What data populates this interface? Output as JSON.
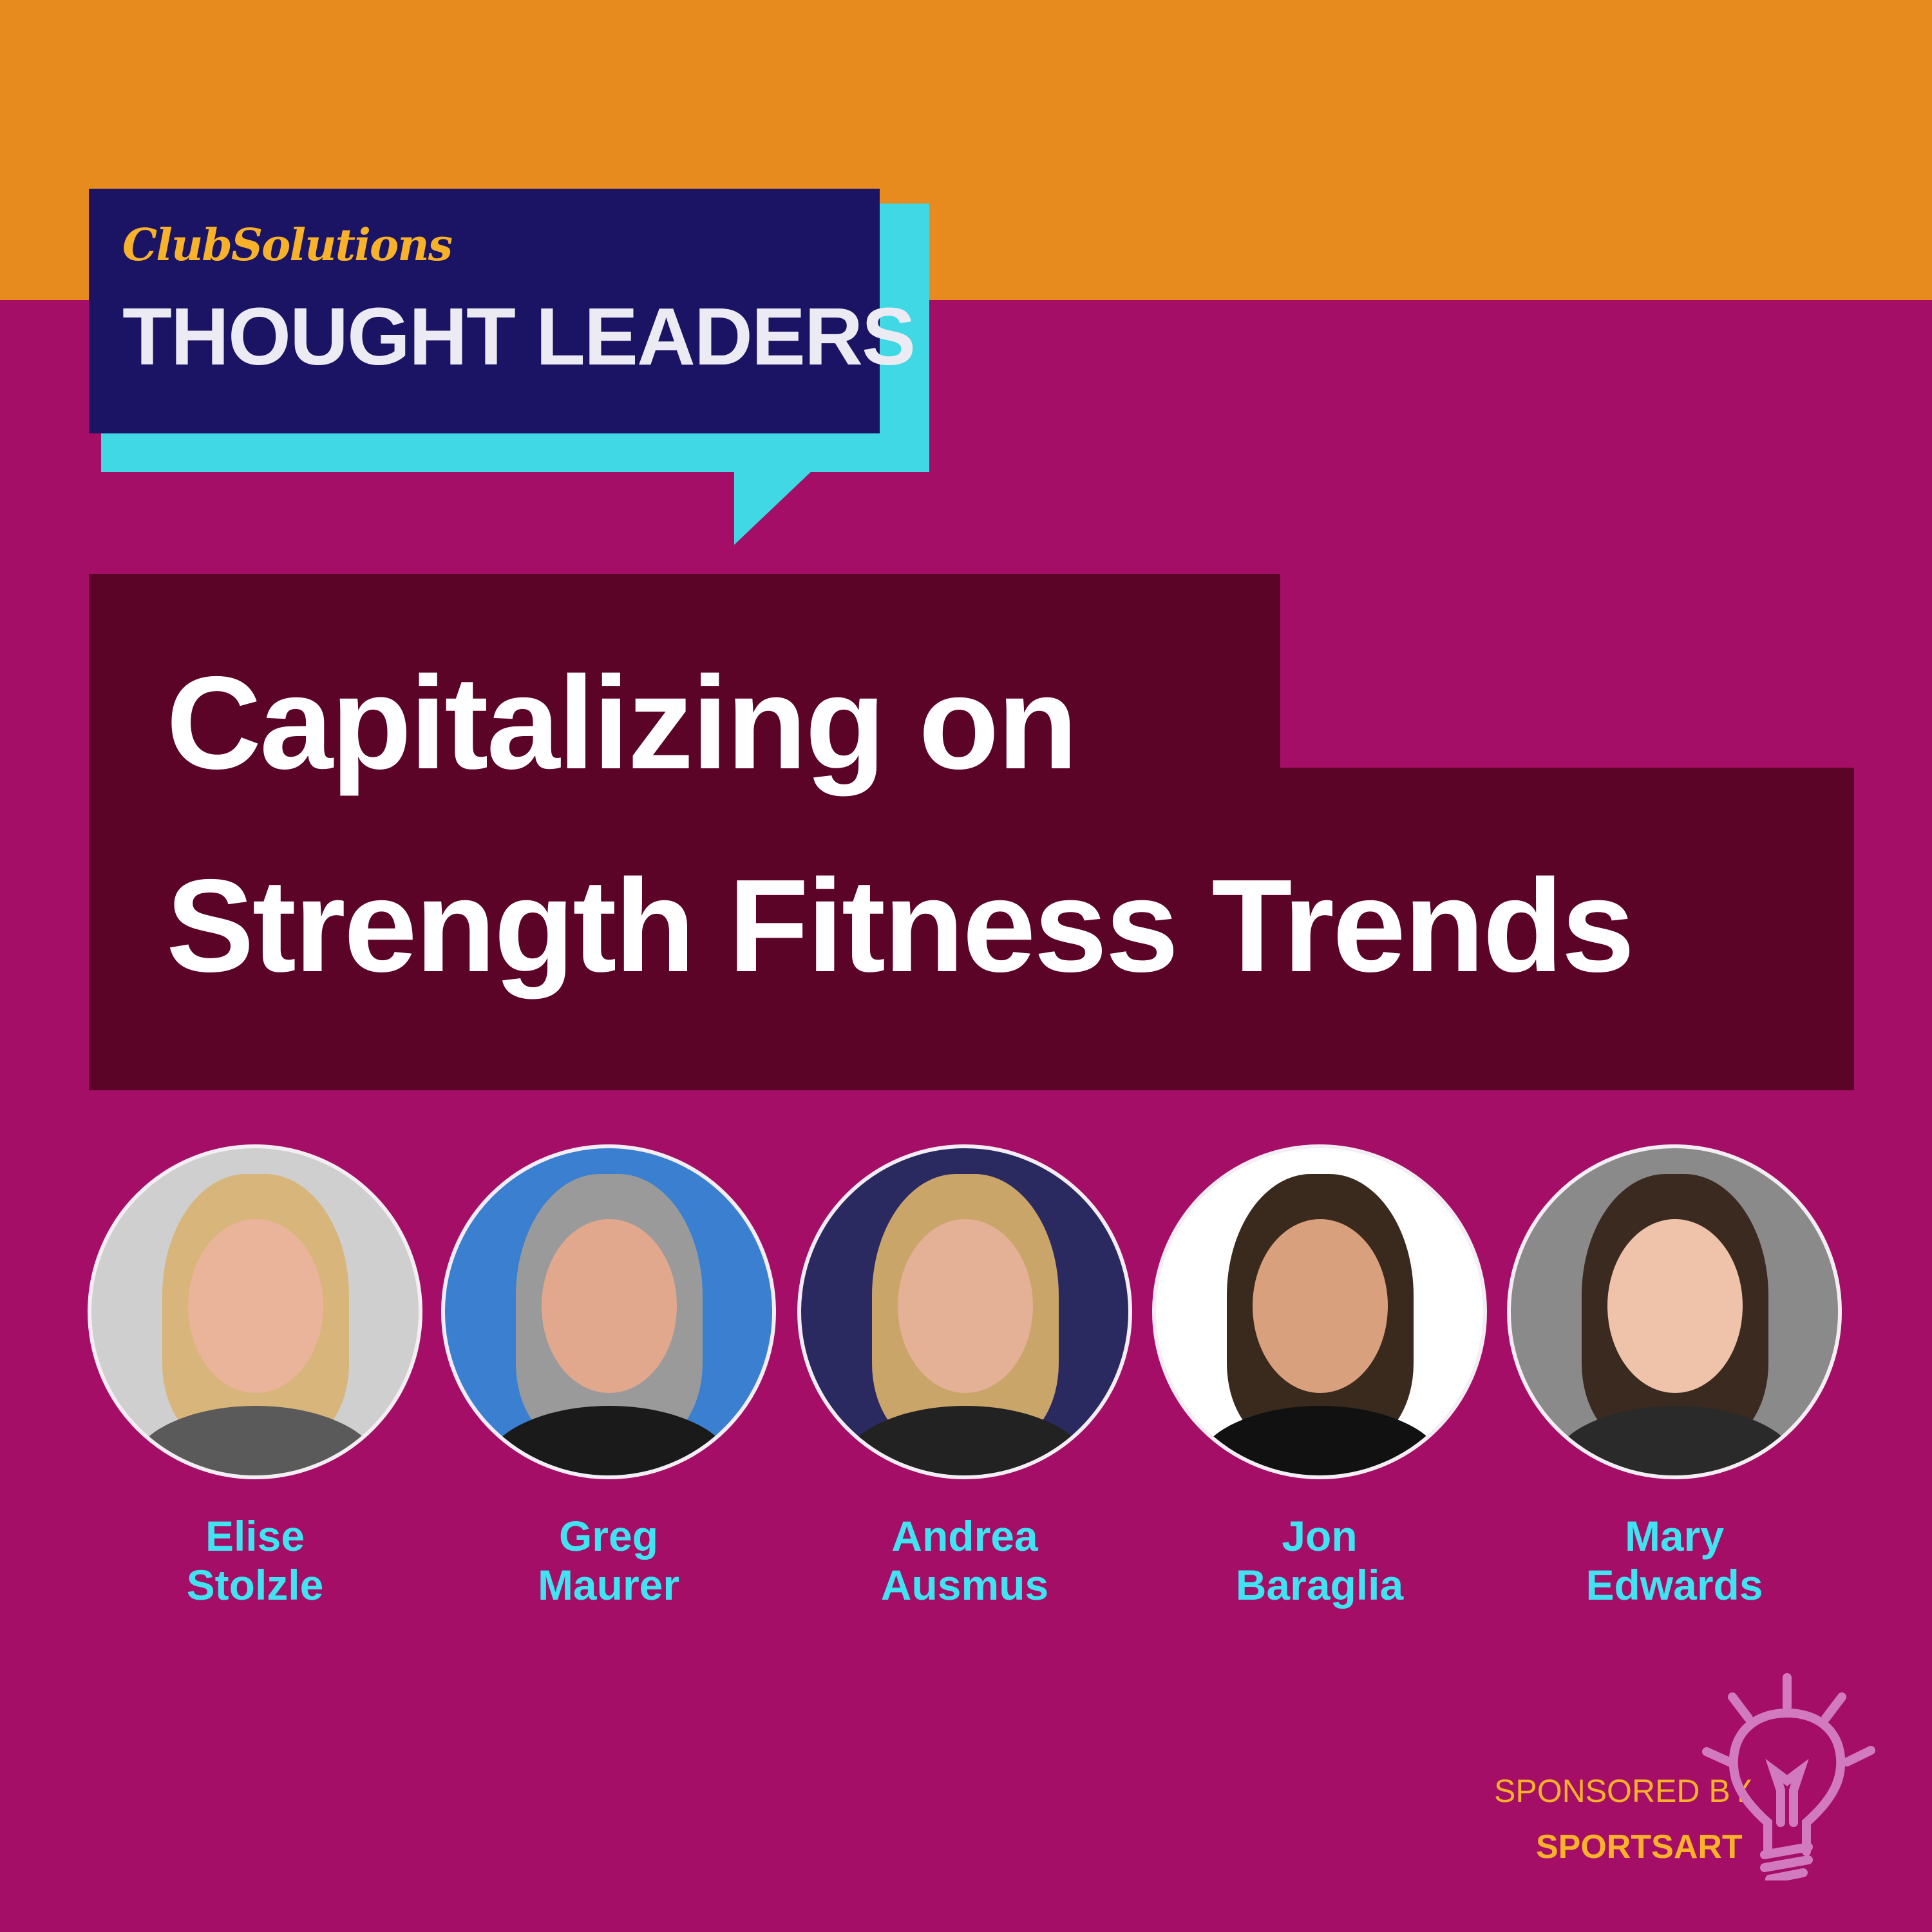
{
  "header": {
    "brand": "ClubSolutions",
    "series_title": "THOUGHT LEADERS"
  },
  "title": {
    "line1": "Capitalizing on",
    "line2": "Strength Fitness Trends"
  },
  "panelists": [
    {
      "first": "Elise",
      "last": "Stolzle",
      "bg": "#cfcfcf",
      "hair": "#d8b57a",
      "skin": "#e9b49a",
      "shirt": "#5a5a5a"
    },
    {
      "first": "Greg",
      "last": "Maurer",
      "bg": "#3a7fd0",
      "hair": "#9a9a9a",
      "skin": "#e2a88e",
      "shirt": "#1a1a1a"
    },
    {
      "first": "Andrea",
      "last": "Ausmus",
      "bg": "#2a2a60",
      "hair": "#c9a56a",
      "skin": "#e4b096",
      "shirt": "#222"
    },
    {
      "first": "Jon",
      "last": "Baraglia",
      "bg": "#ffffff",
      "hair": "#3a2a1e",
      "skin": "#d9a07e",
      "shirt": "#111"
    },
    {
      "first": "Mary",
      "last": "Edwards",
      "bg": "#8a8a8a",
      "hair": "#3b2a20",
      "skin": "#efc2aa",
      "shirt": "#2a2a2a"
    }
  ],
  "sponsor": {
    "label": "SPONSORED BY",
    "name": "SPORTSART",
    "icon": "lightbulb-icon"
  },
  "colors": {
    "orange": "#e88b1e",
    "magenta": "#a50e66",
    "maroon": "#5c0328",
    "navy": "#1b1464",
    "cyan": "#40d8e4",
    "gold": "#f7b22a"
  }
}
